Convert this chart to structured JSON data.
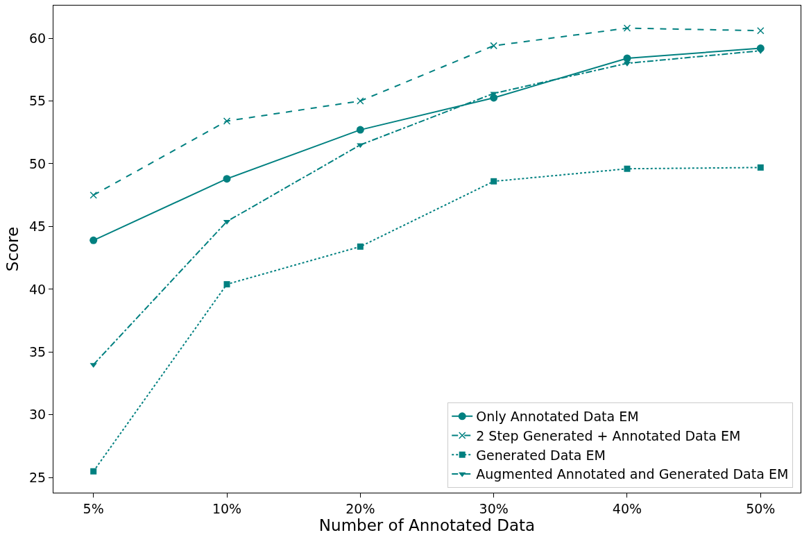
{
  "chart_data": {
    "type": "line",
    "xlabel": "Number of Annotated Data",
    "ylabel": "Score",
    "categories": [
      "5%",
      "10%",
      "20%",
      "30%",
      "40%",
      "50%"
    ],
    "series": [
      {
        "name": "Only Annotated Data EM",
        "color": "#008080",
        "marker": "circle",
        "line_style": "solid",
        "values": [
          43.9,
          48.8,
          52.7,
          55.25,
          58.4,
          59.2
        ]
      },
      {
        "name": "2 Step Generated + Annotated Data EM",
        "color": "#008080",
        "marker": "cross",
        "line_style": "dashed",
        "values": [
          47.5,
          53.4,
          55.0,
          59.4,
          60.8,
          60.6
        ]
      },
      {
        "name": "Generated Data EM",
        "color": "#008080",
        "marker": "square",
        "line_style": "dotted",
        "values": [
          25.5,
          40.4,
          43.4,
          48.6,
          49.6,
          49.7
        ]
      },
      {
        "name": "Augmented Annotated and Generated Data EM",
        "color": "#008080",
        "marker": "triangle",
        "line_style": "dashdot",
        "values": [
          34.0,
          45.4,
          51.5,
          55.6,
          58.0,
          59.0
        ]
      }
    ],
    "ylim": [
      23.8,
      62.6
    ],
    "yticks": [
      25,
      30,
      35,
      40,
      45,
      50,
      55,
      60
    ],
    "grid": false,
    "legend": "bottom right"
  }
}
